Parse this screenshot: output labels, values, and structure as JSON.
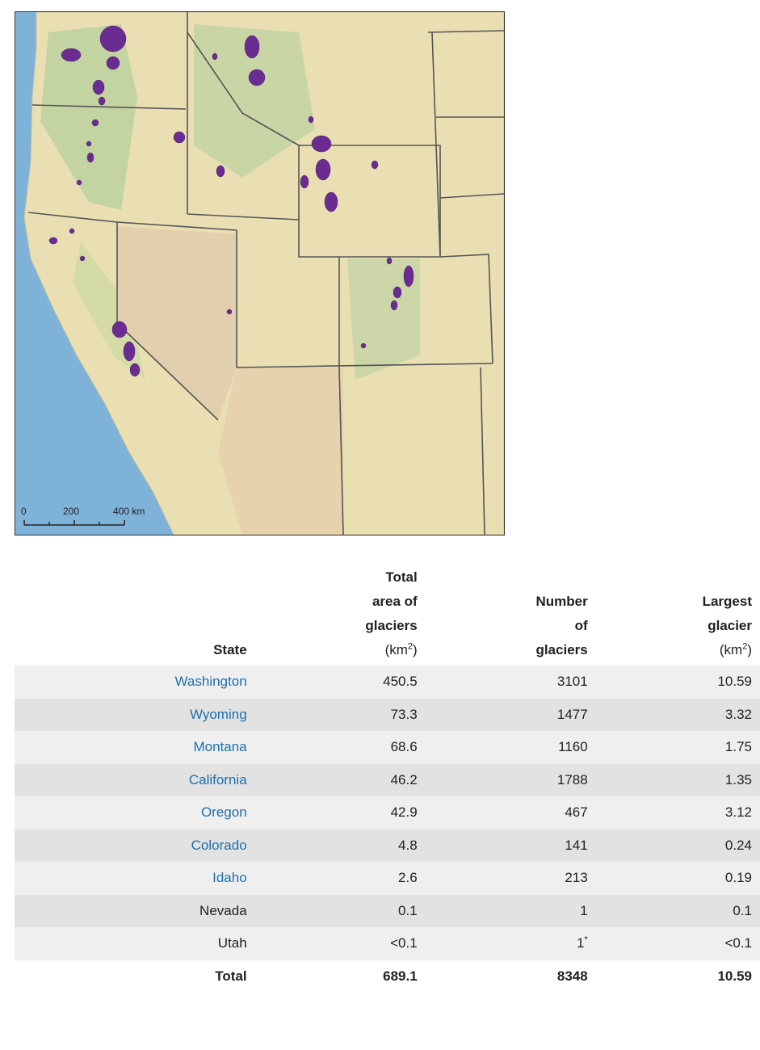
{
  "map": {
    "scale_labels": [
      "0",
      "200",
      "400 km"
    ]
  },
  "table": {
    "headers": [
      {
        "text": "State"
      },
      {
        "text": "Total area of glaciers",
        "unit": [
          "(km",
          "2",
          ")"
        ]
      },
      {
        "text": "Number of glaciers"
      },
      {
        "text": "Largest glacier",
        "unit": [
          "(km",
          "2",
          ")"
        ]
      }
    ],
    "rows": [
      [
        "Washington",
        "450.5",
        "3101",
        "10.59"
      ],
      [
        "Wyoming",
        "73.3",
        "1477",
        "3.32"
      ],
      [
        "Montana",
        "68.6",
        "1160",
        "1.75"
      ],
      [
        "California",
        "46.2",
        "1788",
        "1.35"
      ],
      [
        "Oregon",
        "42.9",
        "467",
        "3.12"
      ],
      [
        "Colorado",
        "4.8",
        "141",
        "0.24"
      ],
      [
        "Idaho",
        "2.6",
        "213",
        "0.19"
      ],
      [
        "Nevada",
        "0.1",
        "1",
        "0.1"
      ],
      [
        "Utah",
        "<0.1",
        "1",
        "<0.1"
      ]
    ],
    "linked_states": [
      true,
      true,
      true,
      true,
      true,
      true,
      true,
      false,
      false
    ],
    "notes": [
      null,
      null,
      null,
      null,
      null,
      null,
      null,
      null,
      [
        null,
        null,
        "*",
        null
      ]
    ],
    "total": [
      "Total",
      "689.1",
      "8348",
      "10.59"
    ]
  }
}
